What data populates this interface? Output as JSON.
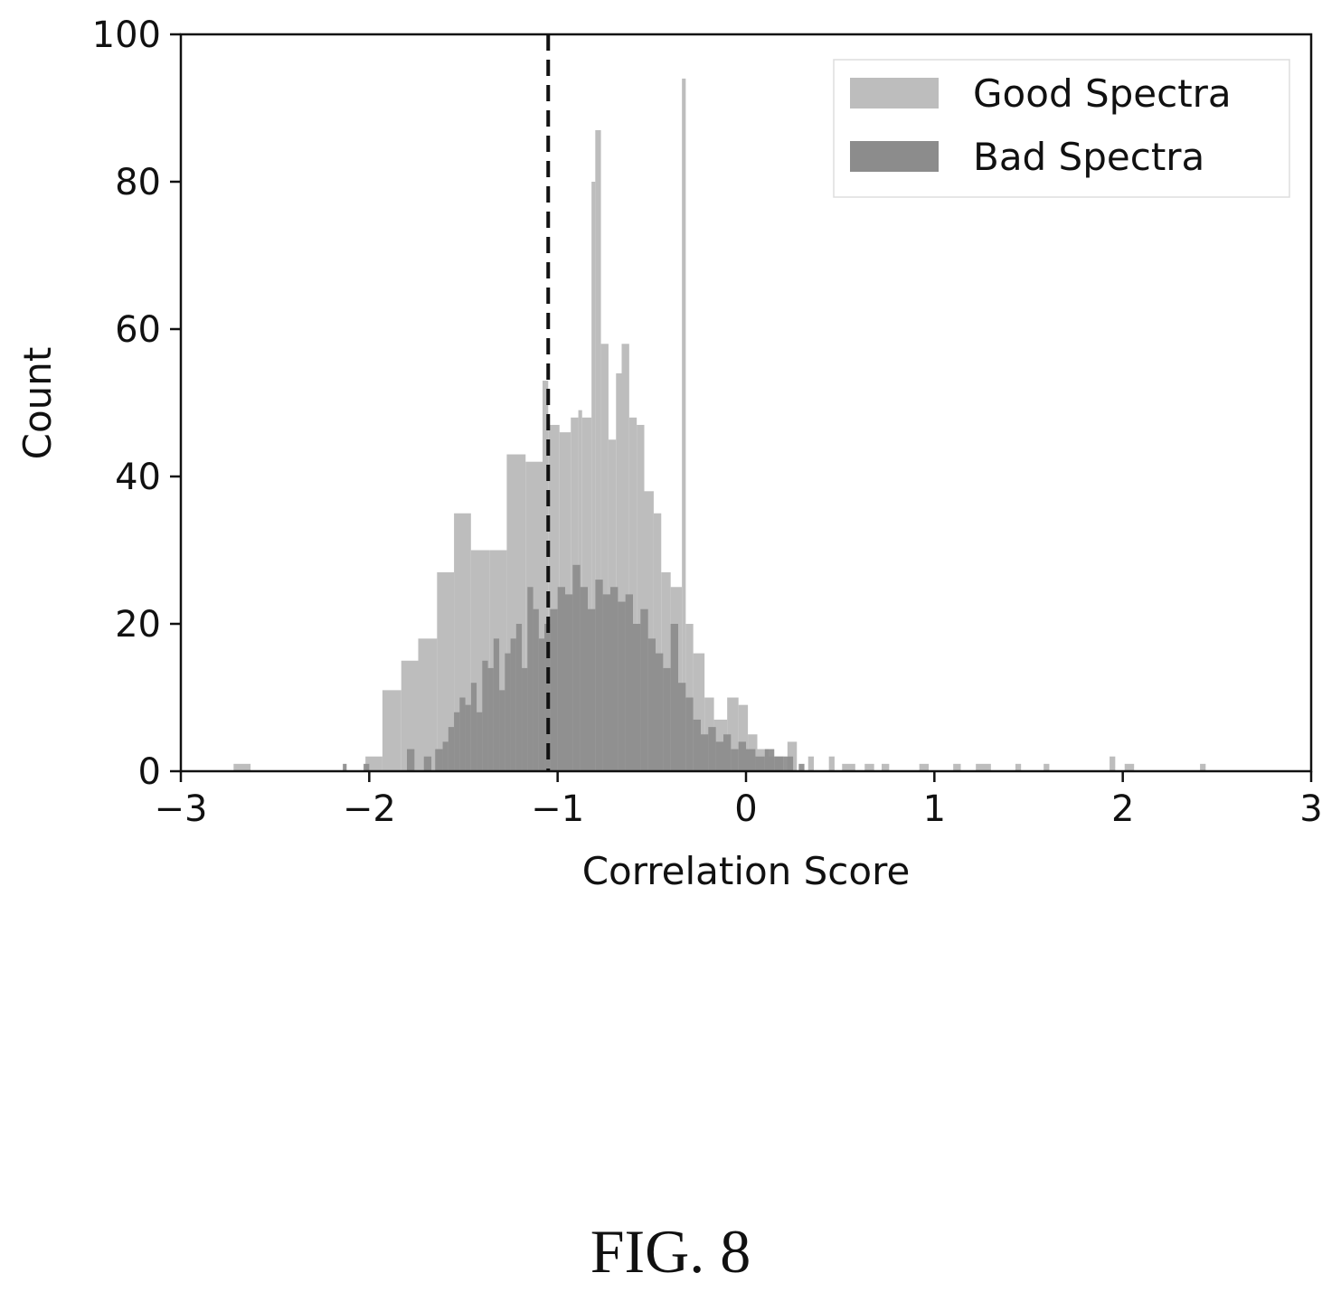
{
  "chart_data": {
    "type": "bar",
    "subtype": "overlapping-histogram",
    "xlabel": "Correlation Score",
    "ylabel": "Count",
    "xlim": [
      -3,
      3
    ],
    "ylim": [
      0,
      100
    ],
    "xticks": [
      -3,
      -2,
      -1,
      0,
      1,
      2,
      3
    ],
    "xtick_labels": [
      "−3",
      "−2",
      "−1",
      "0",
      "1",
      "2",
      "3"
    ],
    "yticks": [
      0,
      20,
      40,
      60,
      80,
      100
    ],
    "ytick_labels": [
      "0",
      "20",
      "40",
      "60",
      "80",
      "100"
    ],
    "grid": false,
    "legend_position": "top-right",
    "threshold_line": {
      "x": -1.05,
      "style": "dashed",
      "color": "#111111"
    },
    "series": [
      {
        "name": "Good Spectra",
        "color": "#bdbdbd",
        "bins": [
          [
            -2.72,
            -2.63,
            1
          ],
          [
            -2.02,
            -1.93,
            2
          ],
          [
            -1.93,
            -1.83,
            11
          ],
          [
            -1.83,
            -1.74,
            15
          ],
          [
            -1.74,
            -1.64,
            18
          ],
          [
            -1.64,
            -1.55,
            27
          ],
          [
            -1.55,
            -1.46,
            35
          ],
          [
            -1.46,
            -1.36,
            30
          ],
          [
            -1.36,
            -1.27,
            30
          ],
          [
            -1.27,
            -1.17,
            43
          ],
          [
            -1.17,
            -1.08,
            42
          ],
          [
            -1.08,
            -1.05,
            53
          ],
          [
            -1.05,
            -0.99,
            47
          ],
          [
            -0.99,
            -0.93,
            46
          ],
          [
            -0.93,
            -0.89,
            48
          ],
          [
            -0.89,
            -0.87,
            49
          ],
          [
            -0.87,
            -0.82,
            48
          ],
          [
            -0.82,
            -0.8,
            80
          ],
          [
            -0.8,
            -0.77,
            87
          ],
          [
            -0.77,
            -0.73,
            58
          ],
          [
            -0.73,
            -0.69,
            45
          ],
          [
            -0.69,
            -0.66,
            54
          ],
          [
            -0.66,
            -0.62,
            58
          ],
          [
            -0.62,
            -0.58,
            48
          ],
          [
            -0.58,
            -0.54,
            47
          ],
          [
            -0.54,
            -0.49,
            38
          ],
          [
            -0.49,
            -0.45,
            35
          ],
          [
            -0.45,
            -0.4,
            27
          ],
          [
            -0.4,
            -0.34,
            25
          ],
          [
            -0.34,
            -0.32,
            94
          ],
          [
            -0.32,
            -0.28,
            20
          ],
          [
            -0.28,
            -0.22,
            16
          ],
          [
            -0.22,
            -0.17,
            10
          ],
          [
            -0.17,
            -0.1,
            7
          ],
          [
            -0.1,
            -0.04,
            10
          ],
          [
            -0.04,
            0.01,
            9
          ],
          [
            0.01,
            0.06,
            5
          ],
          [
            0.06,
            0.12,
            3
          ],
          [
            0.12,
            0.2,
            2
          ],
          [
            0.22,
            0.27,
            4
          ],
          [
            0.33,
            0.36,
            2
          ],
          [
            0.44,
            0.47,
            2
          ],
          [
            0.51,
            0.58,
            1
          ],
          [
            0.63,
            0.68,
            1
          ],
          [
            0.72,
            0.76,
            1
          ],
          [
            0.92,
            0.97,
            1
          ],
          [
            1.1,
            1.14,
            1
          ],
          [
            1.22,
            1.3,
            1
          ],
          [
            1.43,
            1.46,
            1
          ],
          [
            1.58,
            1.61,
            1
          ],
          [
            1.93,
            1.96,
            2
          ],
          [
            2.01,
            2.06,
            1
          ],
          [
            2.41,
            2.44,
            1
          ]
        ]
      },
      {
        "name": "Bad Spectra",
        "color": "#8c8c8c",
        "bins": [
          [
            -2.14,
            -2.12,
            1
          ],
          [
            -2.03,
            -2.0,
            1
          ],
          [
            -1.8,
            -1.76,
            3
          ],
          [
            -1.71,
            -1.67,
            2
          ],
          [
            -1.65,
            -1.61,
            3
          ],
          [
            -1.61,
            -1.58,
            4
          ],
          [
            -1.58,
            -1.55,
            6
          ],
          [
            -1.55,
            -1.52,
            8
          ],
          [
            -1.52,
            -1.49,
            10
          ],
          [
            -1.49,
            -1.46,
            9
          ],
          [
            -1.46,
            -1.43,
            12
          ],
          [
            -1.43,
            -1.4,
            8
          ],
          [
            -1.4,
            -1.37,
            15
          ],
          [
            -1.37,
            -1.34,
            14
          ],
          [
            -1.34,
            -1.31,
            18
          ],
          [
            -1.31,
            -1.28,
            11
          ],
          [
            -1.28,
            -1.25,
            16
          ],
          [
            -1.25,
            -1.22,
            18
          ],
          [
            -1.22,
            -1.19,
            20
          ],
          [
            -1.19,
            -1.16,
            14
          ],
          [
            -1.16,
            -1.13,
            25
          ],
          [
            -1.13,
            -1.1,
            22
          ],
          [
            -1.1,
            -1.07,
            18
          ],
          [
            -1.07,
            -1.04,
            20
          ],
          [
            -1.04,
            -1.0,
            22
          ],
          [
            -1.0,
            -0.96,
            25
          ],
          [
            -0.96,
            -0.92,
            24
          ],
          [
            -0.92,
            -0.88,
            28
          ],
          [
            -0.88,
            -0.84,
            25
          ],
          [
            -0.84,
            -0.8,
            22
          ],
          [
            -0.8,
            -0.76,
            26
          ],
          [
            -0.76,
            -0.72,
            24
          ],
          [
            -0.72,
            -0.68,
            25
          ],
          [
            -0.68,
            -0.64,
            23
          ],
          [
            -0.64,
            -0.6,
            24
          ],
          [
            -0.6,
            -0.56,
            20
          ],
          [
            -0.56,
            -0.52,
            22
          ],
          [
            -0.52,
            -0.48,
            18
          ],
          [
            -0.48,
            -0.44,
            16
          ],
          [
            -0.44,
            -0.4,
            14
          ],
          [
            -0.4,
            -0.36,
            20
          ],
          [
            -0.36,
            -0.32,
            12
          ],
          [
            -0.32,
            -0.28,
            10
          ],
          [
            -0.28,
            -0.24,
            7
          ],
          [
            -0.24,
            -0.2,
            5
          ],
          [
            -0.2,
            -0.16,
            6
          ],
          [
            -0.16,
            -0.12,
            4
          ],
          [
            -0.12,
            -0.08,
            5
          ],
          [
            -0.08,
            -0.04,
            3
          ],
          [
            -0.04,
            0.0,
            4
          ],
          [
            0.0,
            0.05,
            3
          ],
          [
            0.05,
            0.1,
            2
          ],
          [
            0.1,
            0.15,
            3
          ],
          [
            0.15,
            0.2,
            2
          ],
          [
            0.2,
            0.25,
            2
          ],
          [
            0.28,
            0.31,
            1
          ]
        ]
      }
    ]
  },
  "figure": {
    "caption": "FIG. 8"
  }
}
